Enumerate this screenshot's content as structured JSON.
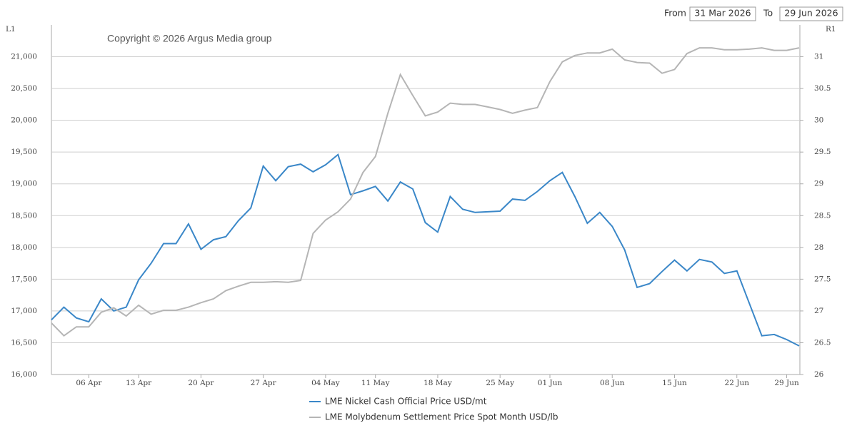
{
  "header": {
    "from_label": "From",
    "from_date": "31 Mar 2026",
    "to_label": "To",
    "to_date": "29 Jun 2026"
  },
  "chart_data": {
    "type": "line",
    "annotation": "Copyright © 2026 Argus Media group",
    "y_label": "L1",
    "y2_label": "R1",
    "categories": [
      null,
      null,
      null,
      "06 Apr",
      null,
      null,
      null,
      "13 Apr",
      null,
      null,
      null,
      null,
      "20 Apr",
      null,
      null,
      null,
      null,
      "27 Apr",
      null,
      null,
      null,
      null,
      "04 May",
      null,
      null,
      null,
      "11 May",
      null,
      null,
      null,
      null,
      "18 May",
      null,
      null,
      null,
      null,
      "25 May",
      null,
      null,
      null,
      "01 Jun",
      null,
      null,
      null,
      null,
      "08 Jun",
      null,
      null,
      null,
      null,
      "15 Jun",
      null,
      null,
      null,
      null,
      "22 Jun",
      null,
      null,
      null,
      "29 Jun",
      null
    ],
    "ylim": [
      16000,
      21500
    ],
    "yticks": [
      {
        "value": 16000,
        "label": "16,000"
      },
      {
        "value": 16500,
        "label": "16,500"
      },
      {
        "value": 17000,
        "label": "17,000"
      },
      {
        "value": 17500,
        "label": "17,500"
      },
      {
        "value": 18000,
        "label": "18,000"
      },
      {
        "value": 18500,
        "label": "18,500"
      },
      {
        "value": 19000,
        "label": "19,000"
      },
      {
        "value": 19500,
        "label": "19,500"
      },
      {
        "value": 20000,
        "label": "20,000"
      },
      {
        "value": 20500,
        "label": "20,500"
      },
      {
        "value": 21000,
        "label": "21,000"
      }
    ],
    "y2lim": [
      26,
      31.5
    ],
    "y2ticks": [
      26,
      26.5,
      27,
      27.5,
      28,
      28.5,
      29,
      29.5,
      30,
      30.5,
      31
    ],
    "grid": true,
    "legend": "bottom",
    "series": [
      {
        "name": "LME Nickel Cash Official Price USD/mt",
        "color": "#3a87c8",
        "values": [
          16860,
          17060,
          16890,
          16830,
          17190,
          17000,
          17060,
          17490,
          17750,
          18060,
          18060,
          18370,
          17970,
          18120,
          18170,
          18420,
          18620,
          19280,
          19050,
          19270,
          19310,
          19190,
          19300,
          19460,
          18830,
          18890,
          18960,
          18730,
          19030,
          18920,
          18390,
          18240,
          18800,
          18600,
          18550,
          18560,
          18570,
          18760,
          18740,
          18880,
          19050,
          19180,
          18800,
          18380,
          18550,
          18330,
          17960,
          17370,
          17430,
          17620,
          17800,
          17630,
          17810,
          17770,
          17590,
          17630,
          17120,
          16610,
          16630,
          16550,
          16450
        ]
      },
      {
        "name": "LME Molybdenum Settlement Price Spot Month USD/lb",
        "color": "#b5b5b5",
        "axis": "y2",
        "values": [
          26.81,
          26.61,
          26.75,
          26.75,
          26.98,
          27.05,
          26.92,
          27.09,
          26.95,
          27.01,
          27.01,
          27.06,
          27.13,
          27.19,
          27.32,
          27.39,
          27.45,
          27.45,
          27.46,
          27.45,
          27.48,
          28.22,
          28.43,
          28.56,
          28.76,
          29.18,
          29.43,
          30.11,
          30.72,
          30.39,
          30.07,
          30.13,
          30.27,
          30.25,
          30.25,
          30.21,
          30.17,
          30.11,
          30.16,
          30.2,
          30.61,
          30.92,
          31.02,
          31.06,
          31.06,
          31.12,
          30.95,
          30.91,
          30.9,
          30.74,
          30.8,
          31.05,
          31.14,
          31.14,
          31.11,
          31.11,
          31.12,
          31.14,
          31.1,
          31.1,
          31.14
        ]
      }
    ]
  }
}
